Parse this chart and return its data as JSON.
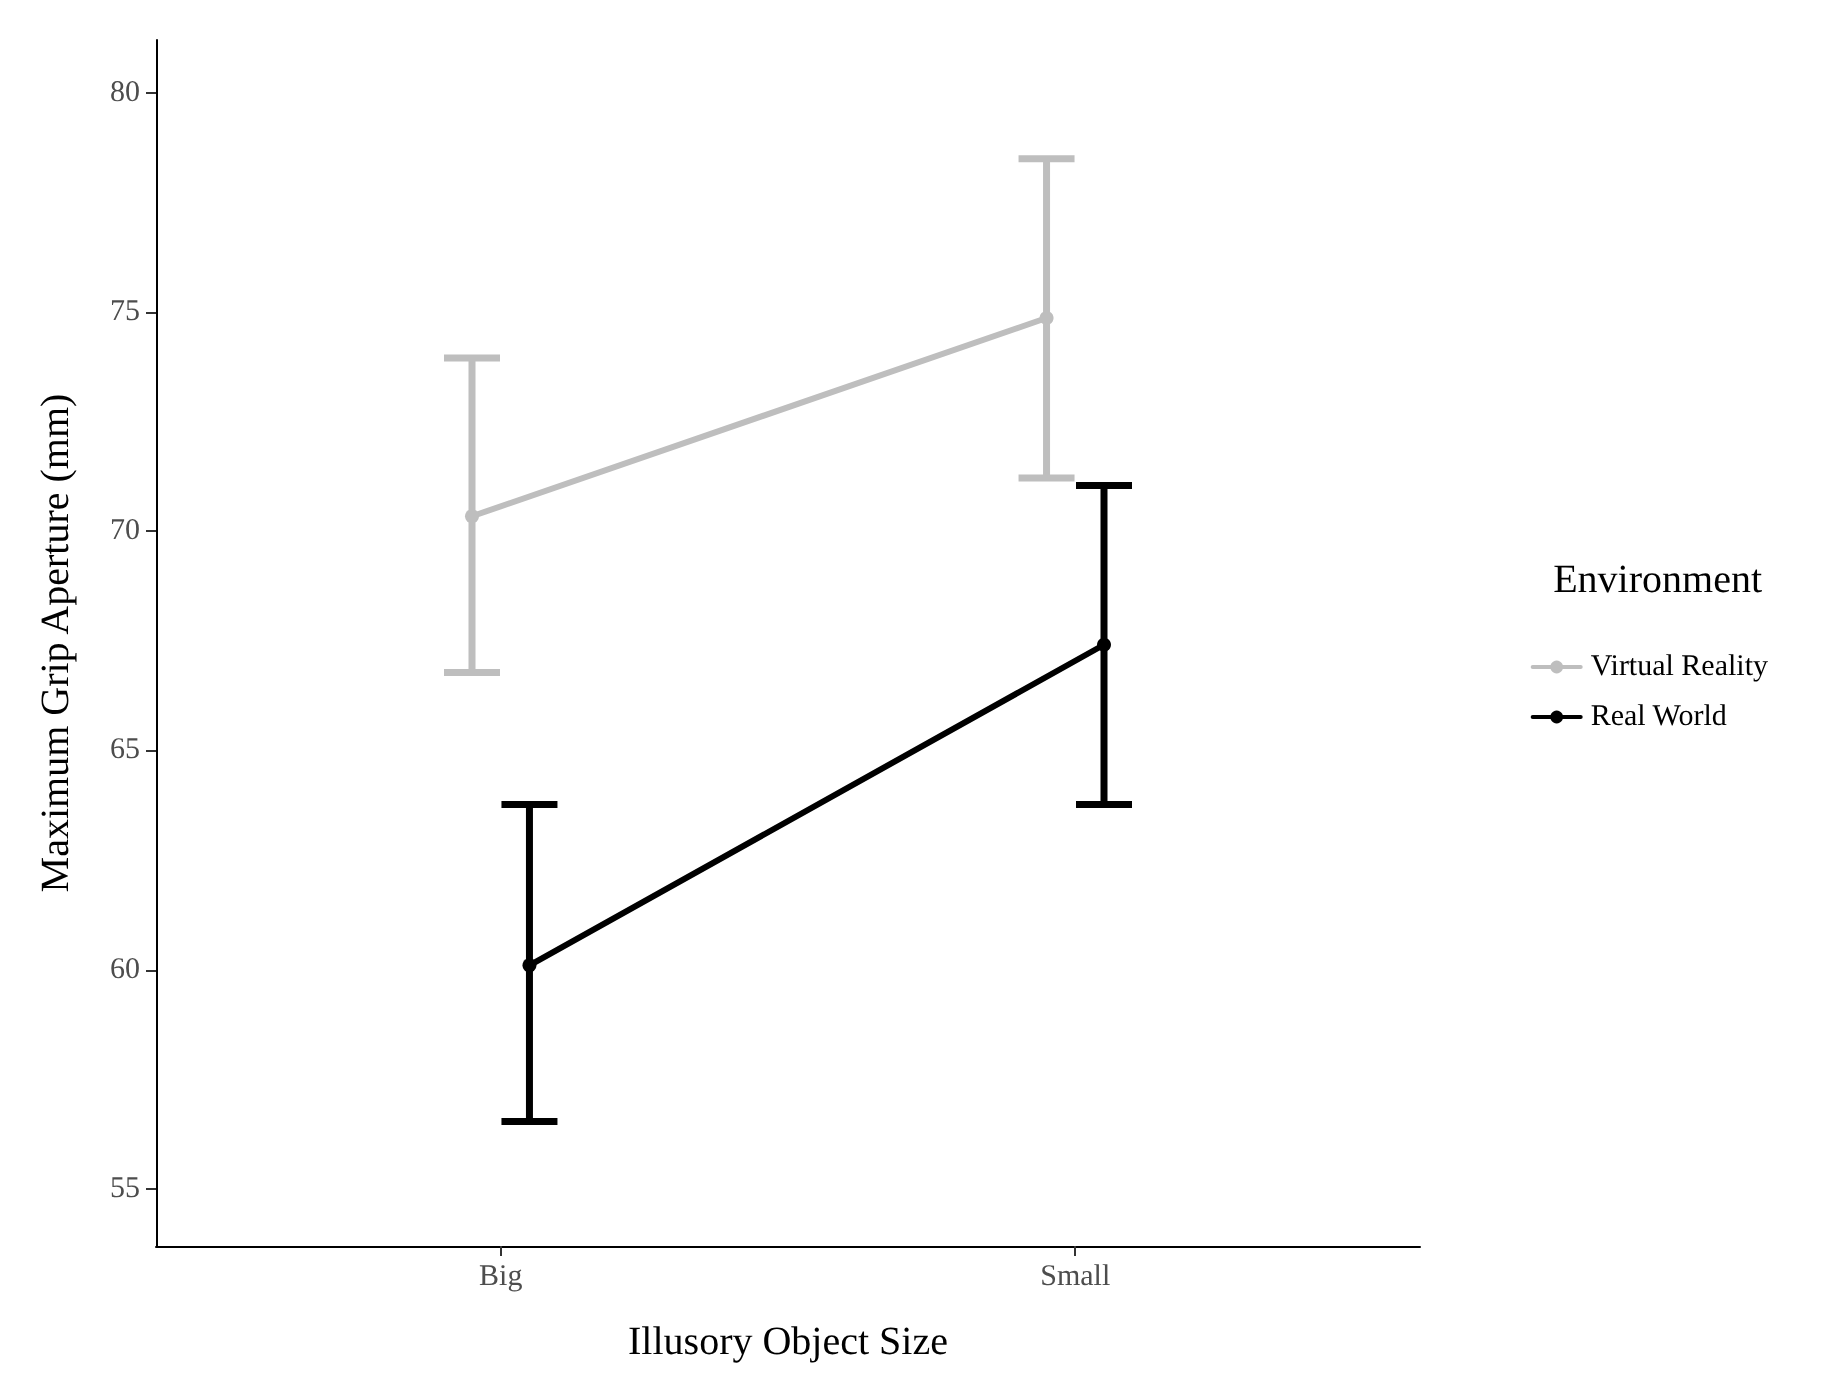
{
  "chart_data": {
    "type": "line",
    "xlabel": "Illusory Object Size",
    "ylabel": "Maximum Grip Aperture (mm)",
    "legend_title": "Environment",
    "categories": [
      "Big",
      "Small"
    ],
    "series": [
      {
        "name": "Virtual Reality",
        "color": "#bebebe",
        "values": [
          70.34,
          74.86
        ],
        "errors": [
          [
            66.78,
            73.95
          ],
          [
            71.21,
            78.49
          ]
        ]
      },
      {
        "name": "Real World",
        "color": "#000000",
        "values": [
          60.1,
          67.41
        ],
        "errors": [
          [
            56.54,
            63.77
          ],
          [
            63.77,
            71.04
          ]
        ]
      }
    ],
    "ylim": [
      53.7,
      81.2
    ],
    "yticks": [
      55,
      60,
      65,
      70,
      75,
      80
    ],
    "grid": false,
    "legend": "right",
    "marker": "circle",
    "line_style": "solid"
  }
}
